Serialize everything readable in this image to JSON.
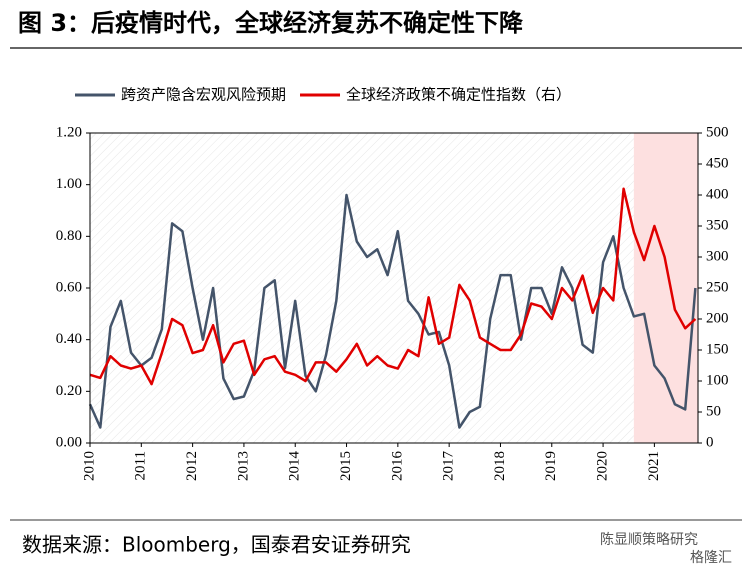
{
  "chart_data": {
    "type": "line",
    "title": "图 3：后疫情时代，全球经济复苏不确定性下降",
    "source": "数据来源：Bloomberg，国泰君安证券研究",
    "watermark": [
      "陈显顺策略研究",
      "格隆汇"
    ],
    "x": [
      2010.0,
      2010.2,
      2010.4,
      2010.6,
      2010.8,
      2011.0,
      2011.2,
      2011.4,
      2011.6,
      2011.8,
      2012.0,
      2012.2,
      2012.4,
      2012.6,
      2012.8,
      2013.0,
      2013.2,
      2013.4,
      2013.6,
      2013.8,
      2014.0,
      2014.2,
      2014.4,
      2014.6,
      2014.8,
      2015.0,
      2015.2,
      2015.4,
      2015.6,
      2015.8,
      2016.0,
      2016.2,
      2016.4,
      2016.6,
      2016.8,
      2017.0,
      2017.2,
      2017.4,
      2017.6,
      2017.8,
      2018.0,
      2018.2,
      2018.4,
      2018.6,
      2018.8,
      2019.0,
      2019.2,
      2019.4,
      2019.6,
      2019.8,
      2020.0,
      2020.2,
      2020.4,
      2020.6,
      2020.8,
      2021.0,
      2021.2,
      2021.4,
      2021.6,
      2021.8
    ],
    "series": [
      {
        "name": "跨资产隐含宏观风险预期",
        "color": "#44546a",
        "axis": "y",
        "values": [
          0.15,
          0.06,
          0.45,
          0.55,
          0.35,
          0.3,
          0.33,
          0.44,
          0.85,
          0.82,
          0.6,
          0.4,
          0.6,
          0.25,
          0.17,
          0.18,
          0.28,
          0.6,
          0.63,
          0.29,
          0.55,
          0.26,
          0.2,
          0.34,
          0.55,
          0.96,
          0.78,
          0.72,
          0.75,
          0.65,
          0.82,
          0.55,
          0.5,
          0.42,
          0.43,
          0.3,
          0.06,
          0.12,
          0.14,
          0.48,
          0.65,
          0.65,
          0.4,
          0.6,
          0.6,
          0.5,
          0.68,
          0.6,
          0.38,
          0.35,
          0.7,
          0.8,
          0.6,
          0.49,
          0.5,
          0.3,
          0.25,
          0.15,
          0.13,
          0.6
        ]
      },
      {
        "name": "全球经济政策不确定性指数（右）",
        "color": "#e00000",
        "axis": "y2",
        "values": [
          110,
          105,
          140,
          125,
          120,
          125,
          95,
          145,
          200,
          190,
          145,
          150,
          190,
          130,
          160,
          165,
          110,
          135,
          140,
          115,
          110,
          100,
          130,
          130,
          115,
          135,
          160,
          125,
          140,
          125,
          120,
          150,
          140,
          235,
          160,
          170,
          255,
          230,
          170,
          160,
          150,
          150,
          175,
          225,
          220,
          200,
          250,
          230,
          270,
          210,
          250,
          230,
          410,
          340,
          295,
          350,
          300,
          215,
          185,
          200
        ]
      }
    ],
    "xlim": [
      2010,
      2021.85
    ],
    "xticks": [
      2010,
      2011,
      2012,
      2013,
      2014,
      2015,
      2016,
      2017,
      2018,
      2019,
      2020,
      2021
    ],
    "ylim": [
      0,
      1.2
    ],
    "yticks": [
      {
        "value": 0,
        "label": "0.00"
      },
      {
        "value": 0.2,
        "label": "0.20"
      },
      {
        "value": 0.4,
        "label": "0.40"
      },
      {
        "value": 0.6,
        "label": "0.60"
      },
      {
        "value": 0.8,
        "label": "0.80"
      },
      {
        "value": 1.0,
        "label": "1.00"
      },
      {
        "value": 1.2,
        "label": "1.20"
      }
    ],
    "y2lim": [
      0,
      500
    ],
    "y2ticks": [
      0,
      50,
      100,
      150,
      200,
      250,
      300,
      350,
      400,
      450,
      500
    ],
    "highlight": [
      2020.6,
      2021.85
    ],
    "highlight_color": "#fde0e0",
    "legend": "top"
  }
}
